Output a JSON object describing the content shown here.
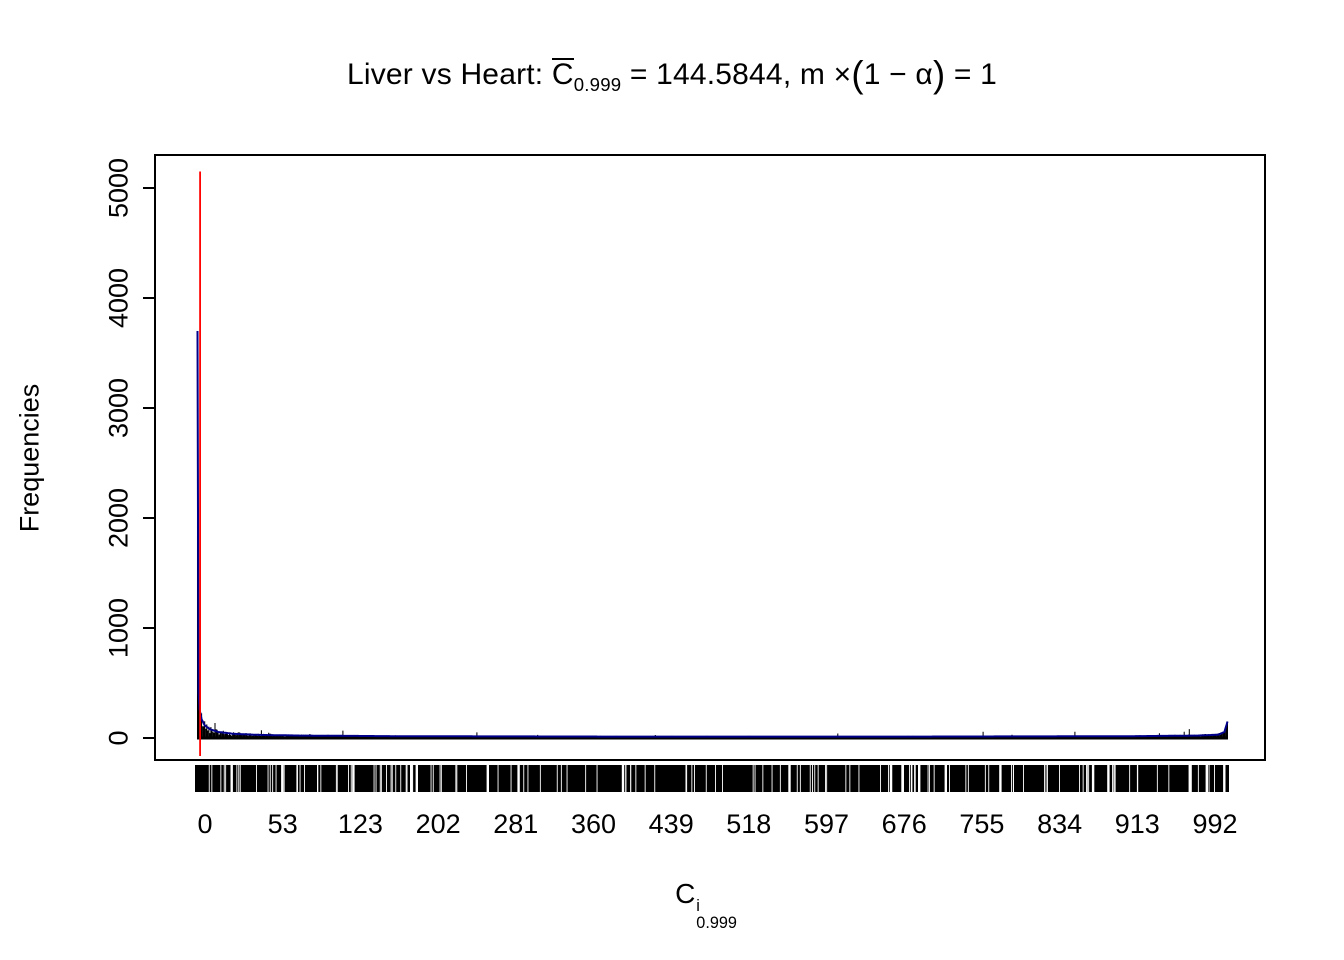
{
  "chart_data": {
    "type": "bar",
    "title": "Liver vs Heart: C̄0.999 = 144.5844, m × (1 − α) = 1",
    "title_segments": {
      "part1": "Liver vs Heart: ",
      "cbar": "C",
      "csub": "0.999",
      "part2": " = 144.5844,  m ",
      "times": "×",
      "lparen": "(",
      "inner": "1 − α",
      "rparen": ")",
      "part4": " = 1"
    },
    "xlabel": "C^i_0.999",
    "x_axis_title": {
      "base": "C",
      "sup": "i",
      "sub": "0.999"
    },
    "ylabel": "Frequencies",
    "y_ticks": [
      0,
      1000,
      2000,
      3000,
      4000,
      5000
    ],
    "ylim": [
      0,
      5200
    ],
    "x_tick_labels": [
      "0",
      "53",
      "123",
      "202",
      "281",
      "360",
      "439",
      "518",
      "597",
      "676",
      "755",
      "834",
      "913",
      "992"
    ],
    "n_bins": 1000,
    "bar_color": "#000000",
    "density_color": "#00008B",
    "red_line": {
      "bin": 3,
      "top": 5150,
      "color": "#FF0000"
    },
    "envelope": [
      [
        0,
        3700
      ],
      [
        1,
        420
      ],
      [
        2,
        260
      ],
      [
        4,
        170
      ],
      [
        7,
        115
      ],
      [
        12,
        80
      ],
      [
        20,
        55
      ],
      [
        35,
        38
      ],
      [
        60,
        28
      ],
      [
        100,
        22
      ],
      [
        200,
        16
      ],
      [
        400,
        13
      ],
      [
        700,
        13
      ],
      [
        900,
        16
      ],
      [
        970,
        22
      ],
      [
        990,
        30
      ],
      [
        996,
        55
      ],
      [
        999,
        150
      ]
    ],
    "legend": "none",
    "grid": false
  }
}
